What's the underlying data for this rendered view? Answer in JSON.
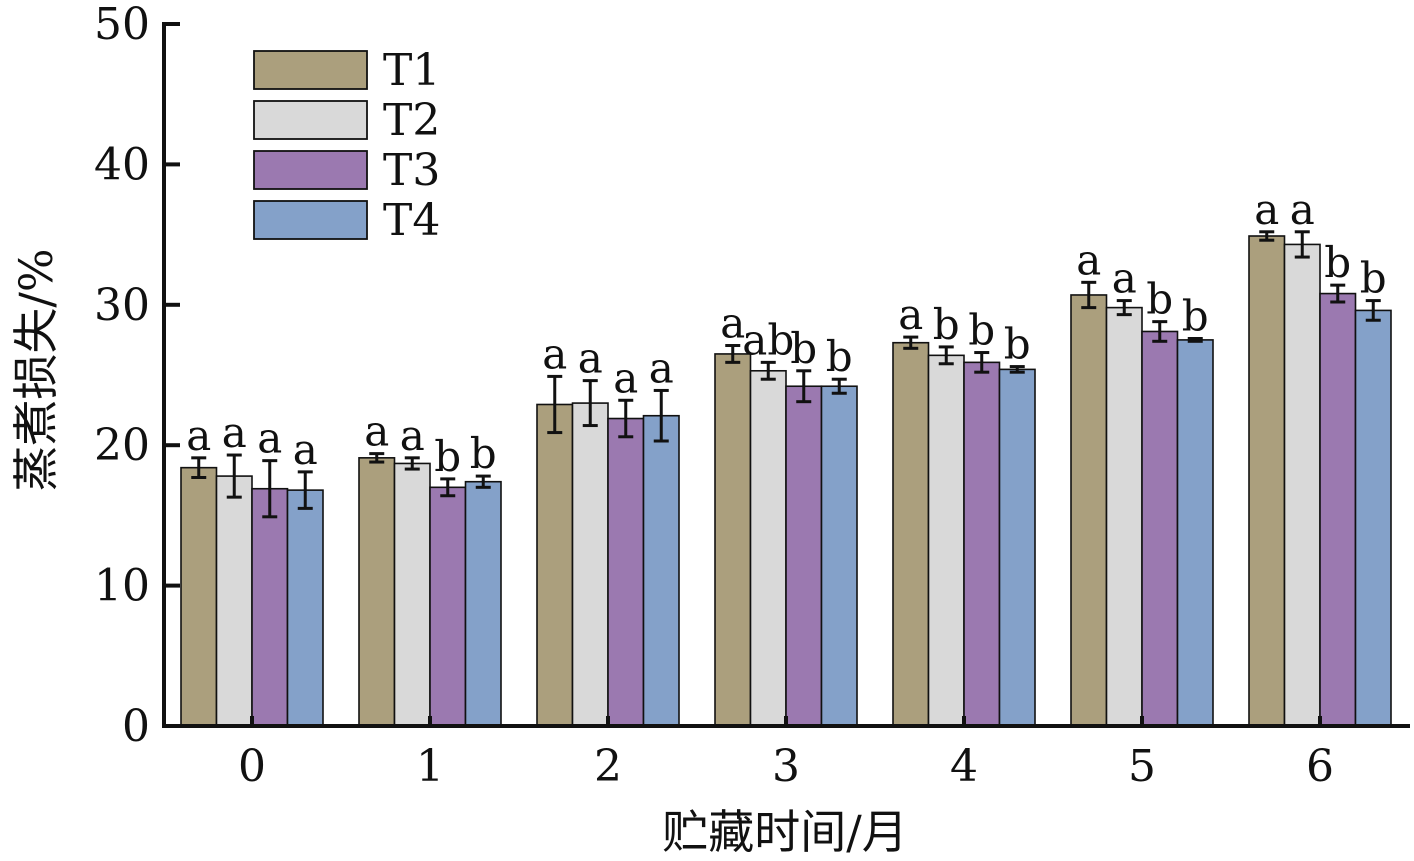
{
  "chart_data": {
    "type": "bar",
    "xlabel": "贮藏时间/月",
    "ylabel": "蒸煮损失/%",
    "ylim": [
      0,
      50
    ],
    "yticks": [
      "0",
      "10",
      "20",
      "30",
      "40",
      "50"
    ],
    "categories": [
      "0",
      "1",
      "2",
      "3",
      "4",
      "5",
      "6"
    ],
    "grid": false,
    "legend_position": "top-left",
    "series": [
      {
        "name": "T1",
        "color": "#ab9f7d",
        "values": [
          18.4,
          19.1,
          22.9,
          26.5,
          27.3,
          30.7,
          34.9
        ],
        "errors": [
          0.7,
          0.3,
          2.0,
          0.6,
          0.4,
          0.9,
          0.3
        ],
        "labels": [
          "a",
          "a",
          "a",
          "a",
          "a",
          "a",
          "a"
        ]
      },
      {
        "name": "T2",
        "color": "#d9d9d9",
        "values": [
          17.8,
          18.7,
          23.0,
          25.3,
          26.4,
          29.8,
          34.3
        ],
        "errors": [
          1.5,
          0.4,
          1.6,
          0.6,
          0.6,
          0.5,
          0.9
        ],
        "labels": [
          "a",
          "a",
          "a",
          "ab",
          "b",
          "a",
          "a"
        ]
      },
      {
        "name": "T3",
        "color": "#9b79b0",
        "values": [
          16.9,
          17.0,
          21.9,
          24.2,
          25.9,
          28.1,
          30.8
        ],
        "errors": [
          2.0,
          0.6,
          1.3,
          1.1,
          0.7,
          0.7,
          0.6
        ],
        "labels": [
          "a",
          "b",
          "a",
          "b",
          "b",
          "b",
          "b"
        ]
      },
      {
        "name": "T4",
        "color": "#84a1c9",
        "values": [
          16.8,
          17.4,
          22.1,
          24.2,
          25.4,
          27.5,
          29.6
        ],
        "errors": [
          1.3,
          0.4,
          1.8,
          0.5,
          0.2,
          0.1,
          0.7
        ],
        "labels": [
          "a",
          "b",
          "a",
          "b",
          "b",
          "b",
          "b"
        ]
      }
    ]
  }
}
